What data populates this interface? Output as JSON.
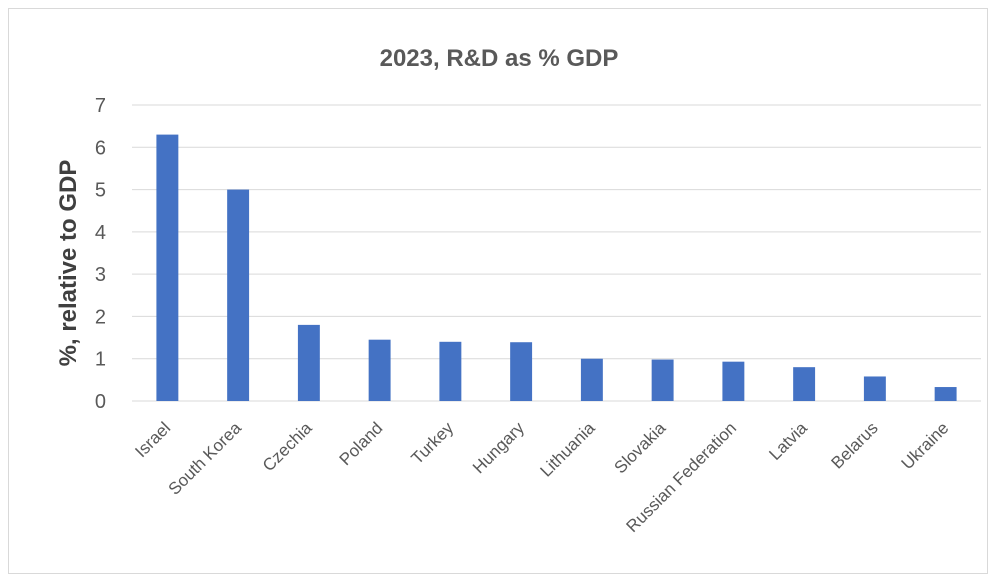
{
  "chart_data": {
    "type": "bar",
    "title": "2023, R&D as % GDP",
    "xlabel": "",
    "ylabel": "%, relative to GDP",
    "ylim": [
      0,
      7
    ],
    "yticks": [
      "0",
      "1",
      "2",
      "3",
      "4",
      "5",
      "6",
      "7"
    ],
    "categories": [
      "Israel",
      "South Korea",
      "Czechia",
      "Poland",
      "Turkey",
      "Hungary",
      "Lithuania",
      "Slovakia",
      "Russian Federation",
      "Latvia",
      "Belarus",
      "Ukraine"
    ],
    "values": [
      6.3,
      5.0,
      1.8,
      1.45,
      1.4,
      1.39,
      1.0,
      0.98,
      0.93,
      0.8,
      0.58,
      0.33
    ],
    "grid": true,
    "legend": "none",
    "bar_color": "#4472C4"
  }
}
